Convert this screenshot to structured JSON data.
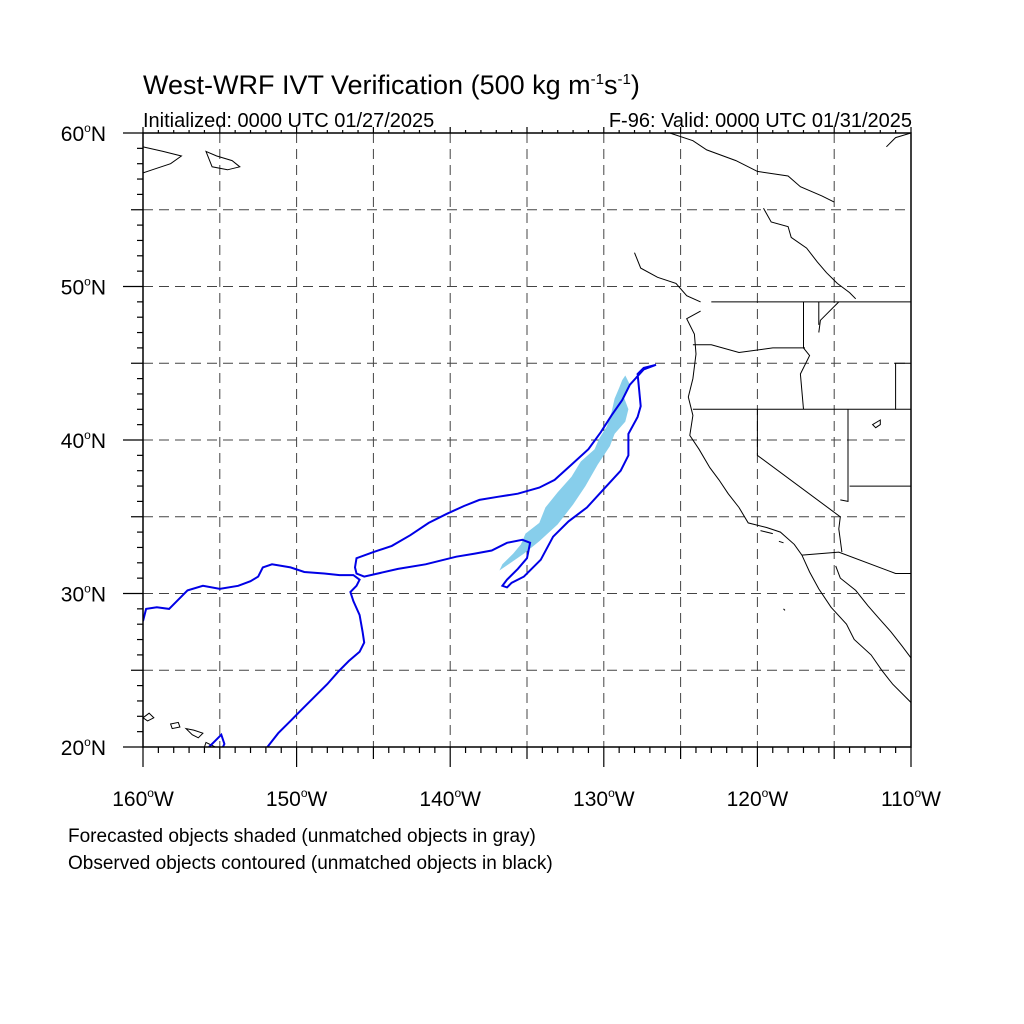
{
  "title": {
    "main": "West-WRF IVT Verification (500 kg m",
    "exp1": "-1",
    "mid": "s",
    "exp2": "-1",
    "end": ")"
  },
  "subtitle_left": "Initialized: 0000 UTC 01/27/2025",
  "subtitle_right": "F-96: Valid: 0000 UTC 01/31/2025",
  "notes": [
    "Forecasted objects shaded (unmatched objects in gray)",
    "Observed objects contoured (unmatched objects in black)"
  ],
  "map": {
    "lon_range": [
      -160,
      -110
    ],
    "lat_range": [
      20,
      60
    ],
    "lat_labels": [
      {
        "value": 60,
        "text": "60",
        "suffix": "N"
      },
      {
        "value": 50,
        "text": "50",
        "suffix": "N"
      },
      {
        "value": 40,
        "text": "40",
        "suffix": "N"
      },
      {
        "value": 30,
        "text": "30",
        "suffix": "N"
      },
      {
        "value": 20,
        "text": "20",
        "suffix": "N"
      }
    ],
    "lon_labels": [
      {
        "value": -160,
        "text": "160",
        "suffix": "W"
      },
      {
        "value": -150,
        "text": "150",
        "suffix": "W"
      },
      {
        "value": -140,
        "text": "140",
        "suffix": "W"
      },
      {
        "value": -130,
        "text": "130",
        "suffix": "W"
      },
      {
        "value": -120,
        "text": "120",
        "suffix": "W"
      },
      {
        "value": -110,
        "text": "110",
        "suffix": "W"
      }
    ],
    "gridline_interval_deg": 5,
    "gridline_style": "dashed",
    "colors": {
      "forecast_fill": "#87ceeb",
      "observed_contour": "#0000e6",
      "coastline": "#000000",
      "grid": "#444444"
    },
    "forecast_object": [
      [
        -128.6,
        44.2
      ],
      [
        -128.3,
        43.6
      ],
      [
        -128.7,
        42.8
      ],
      [
        -128.4,
        42.0
      ],
      [
        -128.6,
        41.2
      ],
      [
        -129.3,
        40.4
      ],
      [
        -129.6,
        39.6
      ],
      [
        -130.4,
        38.4
      ],
      [
        -131.2,
        37.0
      ],
      [
        -132.0,
        35.8
      ],
      [
        -133.0,
        34.5
      ],
      [
        -134.2,
        33.4
      ],
      [
        -135.2,
        32.6
      ],
      [
        -136.2,
        31.9
      ],
      [
        -136.8,
        31.5
      ],
      [
        -136.6,
        31.9
      ],
      [
        -135.9,
        32.6
      ],
      [
        -135.4,
        33.2
      ],
      [
        -135.1,
        33.9
      ],
      [
        -134.2,
        34.6
      ],
      [
        -133.8,
        35.6
      ],
      [
        -133.0,
        36.6
      ],
      [
        -132.1,
        37.6
      ],
      [
        -131.5,
        38.6
      ],
      [
        -130.6,
        39.4
      ],
      [
        -130.3,
        40.1
      ],
      [
        -129.8,
        40.9
      ],
      [
        -129.5,
        41.8
      ],
      [
        -129.3,
        42.7
      ],
      [
        -129.0,
        43.4
      ],
      [
        -128.8,
        43.9
      ]
    ],
    "observed_object_main": [
      [
        -126.6,
        44.9
      ],
      [
        -127.4,
        44.7
      ],
      [
        -127.8,
        44.3
      ],
      [
        -127.7,
        43.3
      ],
      [
        -127.6,
        42.2
      ],
      [
        -127.8,
        41.5
      ],
      [
        -128.4,
        40.4
      ],
      [
        -128.4,
        39.0
      ],
      [
        -128.9,
        38.0
      ],
      [
        -130.0,
        36.8
      ],
      [
        -131.1,
        35.6
      ],
      [
        -132.3,
        34.7
      ],
      [
        -133.3,
        33.7
      ],
      [
        -134.1,
        32.2
      ],
      [
        -135.2,
        31.1
      ],
      [
        -136.0,
        30.7
      ],
      [
        -136.3,
        30.4
      ],
      [
        -136.6,
        30.5
      ],
      [
        -136.3,
        30.9
      ],
      [
        -135.6,
        31.6
      ],
      [
        -135.0,
        32.3
      ],
      [
        -134.8,
        33.3
      ],
      [
        -135.3,
        33.5
      ],
      [
        -136.3,
        33.3
      ],
      [
        -137.3,
        32.8
      ],
      [
        -138.4,
        32.6
      ],
      [
        -139.6,
        32.4
      ],
      [
        -141.6,
        31.9
      ],
      [
        -143.4,
        31.6
      ],
      [
        -145.6,
        31.1
      ],
      [
        -146.1,
        31.3
      ],
      [
        -146.2,
        31.7
      ],
      [
        -146.1,
        32.3
      ],
      [
        -145.0,
        32.7
      ],
      [
        -143.8,
        33.1
      ],
      [
        -142.6,
        33.8
      ],
      [
        -141.4,
        34.6
      ],
      [
        -140.2,
        35.2
      ],
      [
        -139.1,
        35.7
      ],
      [
        -138.1,
        36.1
      ],
      [
        -136.9,
        36.3
      ],
      [
        -135.6,
        36.5
      ],
      [
        -134.2,
        36.9
      ],
      [
        -133.2,
        37.4
      ],
      [
        -132.1,
        38.4
      ],
      [
        -131.0,
        39.4
      ],
      [
        -130.2,
        40.5
      ],
      [
        -129.5,
        41.6
      ],
      [
        -128.8,
        42.6
      ],
      [
        -128.3,
        43.6
      ],
      [
        -127.4,
        44.6
      ]
    ],
    "observed_object_west": [
      [
        -160.0,
        28.2
      ],
      [
        -159.8,
        29.0
      ],
      [
        -159.1,
        29.1
      ],
      [
        -158.3,
        29.0
      ],
      [
        -157.6,
        29.7
      ],
      [
        -157.1,
        30.2
      ],
      [
        -156.1,
        30.5
      ],
      [
        -155.0,
        30.3
      ],
      [
        -153.8,
        30.5
      ],
      [
        -153.0,
        30.8
      ],
      [
        -152.5,
        31.1
      ],
      [
        -152.2,
        31.7
      ],
      [
        -151.6,
        31.9
      ],
      [
        -150.4,
        31.7
      ],
      [
        -149.5,
        31.4
      ],
      [
        -148.2,
        31.3
      ],
      [
        -147.2,
        31.2
      ],
      [
        -146.3,
        31.2
      ],
      [
        -145.9,
        30.9
      ],
      [
        -146.1,
        30.5
      ],
      [
        -146.5,
        30.1
      ],
      [
        -146.3,
        29.5
      ],
      [
        -145.9,
        28.6
      ],
      [
        -145.7,
        27.5
      ],
      [
        -145.6,
        26.8
      ],
      [
        -145.9,
        26.2
      ],
      [
        -146.6,
        25.6
      ],
      [
        -147.3,
        24.9
      ],
      [
        -148.0,
        24.1
      ],
      [
        -148.8,
        23.3
      ],
      [
        -149.6,
        22.5
      ],
      [
        -150.4,
        21.7
      ],
      [
        -151.2,
        20.9
      ],
      [
        -151.9,
        20.0
      ]
    ],
    "observed_object_south": [
      [
        -155.7,
        20.0
      ],
      [
        -155.2,
        20.5
      ],
      [
        -154.9,
        20.8
      ],
      [
        -154.7,
        20.2
      ],
      [
        -154.8,
        20.0
      ]
    ]
  }
}
